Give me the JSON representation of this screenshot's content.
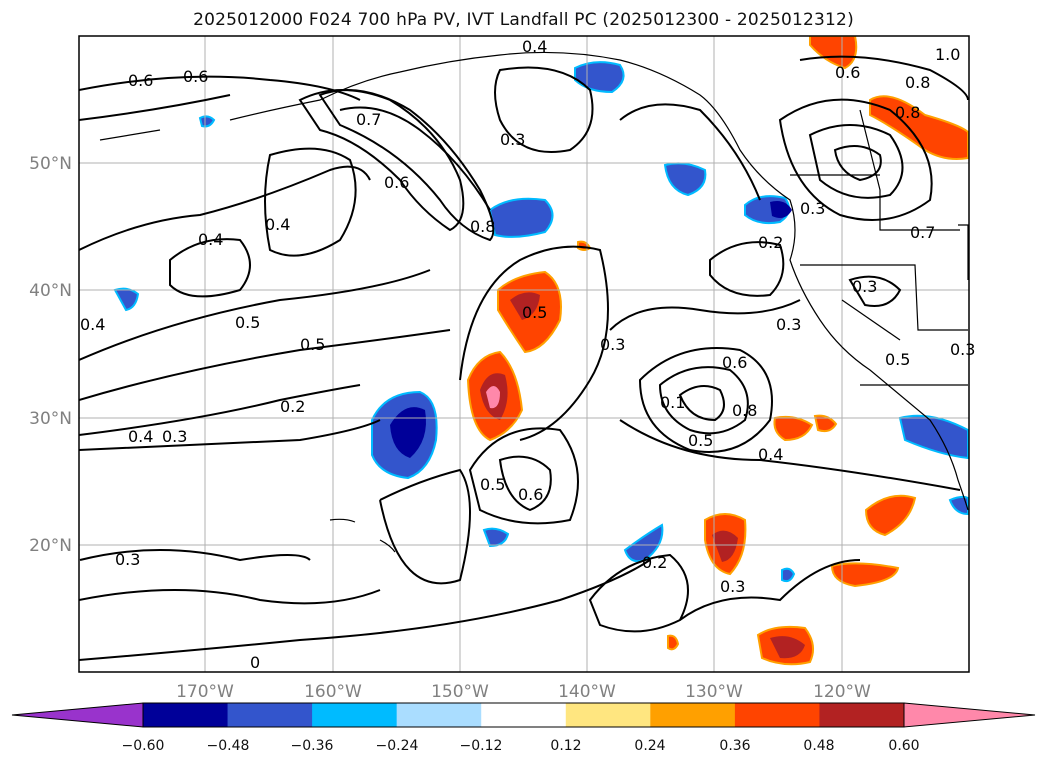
{
  "title": "2025012000 F024 700 hPa PV, IVT Landfall PC (2025012300 - 2025012312)",
  "lat_labels": [
    "50°N",
    "40°N",
    "30°N",
    "20°N"
  ],
  "lon_labels": [
    "170°W",
    "160°W",
    "150°W",
    "140°W",
    "130°W",
    "120°W"
  ],
  "colorbar": {
    "ticks": [
      "−0.60",
      "−0.48",
      "−0.36",
      "−0.24",
      "−0.12",
      "0.12",
      "0.24",
      "0.36",
      "0.48",
      "0.60"
    ],
    "colors": [
      "#9933cc",
      "#000099",
      "#3355cc",
      "#00bbff",
      "#aaddff",
      "#ffffff",
      "#ffe680",
      "#ffa000",
      "#ff4400",
      "#b22222",
      "#ff88aa"
    ]
  },
  "contour_labels": [
    "0.6",
    "0.6",
    "0.4",
    "0.7",
    "0.6",
    "0.3",
    "0.8",
    "0.4",
    "0.4",
    "0.5",
    "0.5",
    "0.2",
    "0.3",
    "0.4",
    "0.5",
    "0.3",
    "0.5",
    "0.6",
    "0.6",
    "0.8",
    "0.1",
    "0.5",
    "0.4",
    "0.2",
    "0.3",
    "0.3",
    "0.3",
    "0.2",
    "0.3",
    "0.5",
    "0.7",
    "0.8",
    "0.6",
    "0.8",
    "1.0",
    "0.3",
    "0.3",
    "0.4",
    "0"
  ],
  "colors": {
    "grid": "#b0b0b0",
    "contour": "#000000",
    "frame": "#000000"
  }
}
